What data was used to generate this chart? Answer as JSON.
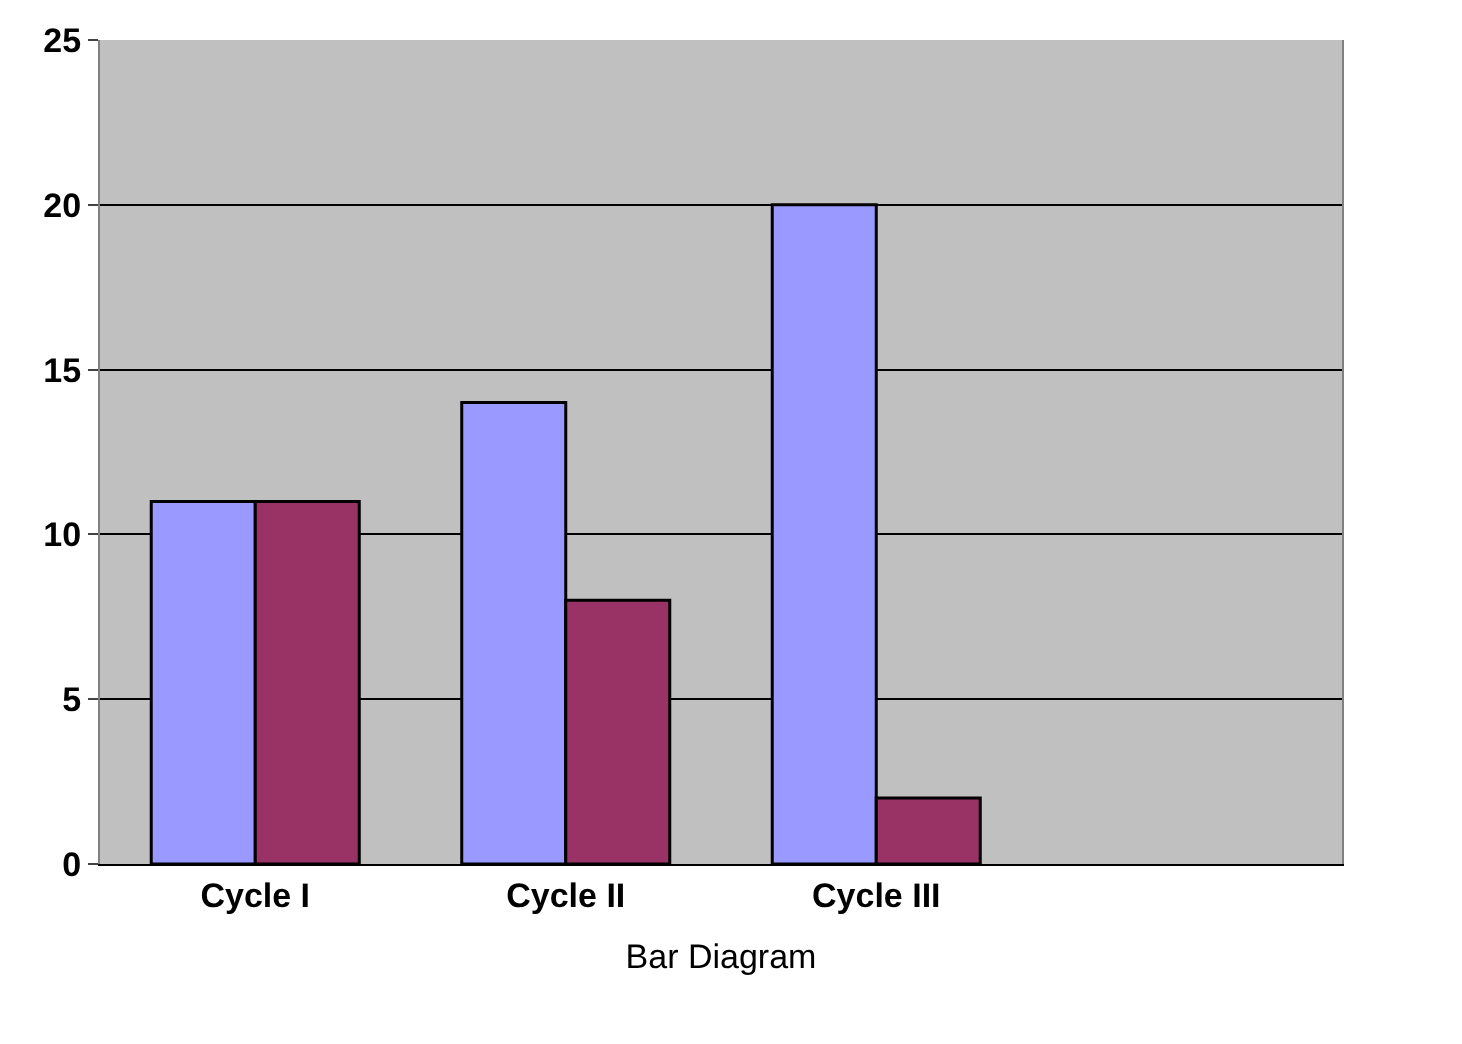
{
  "chart_data": {
    "type": "bar",
    "xlabel": "Bar Diagram",
    "categories": [
      "Cycle I",
      "Cycle II",
      "Cycle III",
      null
    ],
    "series": [
      {
        "color": "#9999ff",
        "values": [
          11,
          14,
          20,
          null
        ]
      },
      {
        "color": "#993366",
        "values": [
          11,
          8,
          2,
          null
        ]
      }
    ],
    "ylim": [
      0,
      25
    ],
    "yticks": [
      0,
      5,
      10,
      15,
      20,
      25
    ],
    "grid": "y"
  }
}
